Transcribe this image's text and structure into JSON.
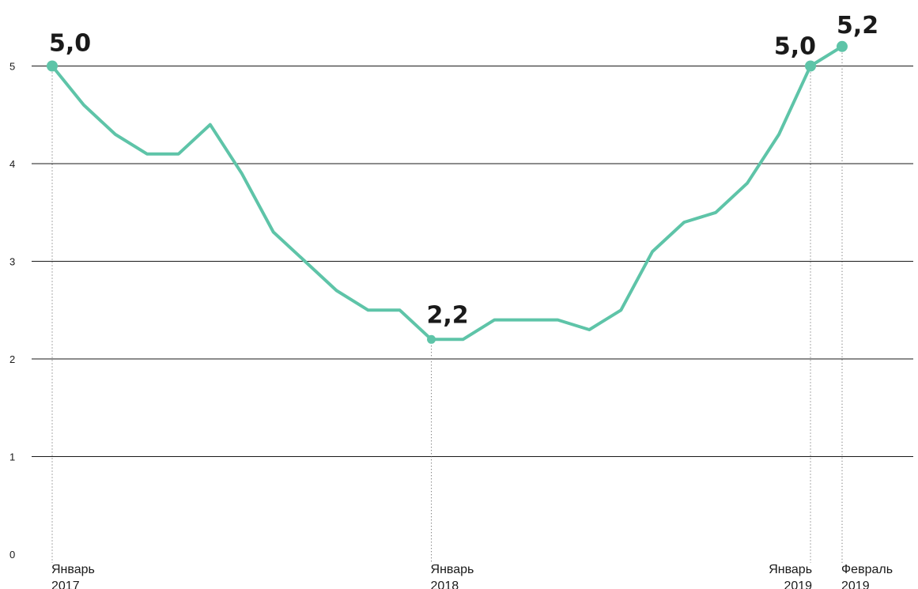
{
  "chart_data": {
    "type": "line",
    "title": "",
    "xlabel": "",
    "ylabel": "",
    "ylim": [
      0,
      5
    ],
    "y_ticks": [
      "0",
      "1",
      "2",
      "3",
      "4",
      "5"
    ],
    "grid": true,
    "color": "#5ec4a8",
    "x": [
      "2017-01",
      "2017-02",
      "2017-03",
      "2017-04",
      "2017-05",
      "2017-06",
      "2017-07",
      "2017-08",
      "2017-09",
      "2017-10",
      "2017-11",
      "2017-12",
      "2018-01",
      "2018-02",
      "2018-03",
      "2018-04",
      "2018-05",
      "2018-06",
      "2018-07",
      "2018-08",
      "2018-09",
      "2018-10",
      "2018-11",
      "2018-12",
      "2019-01",
      "2019-02"
    ],
    "series": [
      {
        "values": [
          5.0,
          4.6,
          4.3,
          4.1,
          4.1,
          4.4,
          3.9,
          3.3,
          3.0,
          2.7,
          2.5,
          2.5,
          2.2,
          2.2,
          2.4,
          2.4,
          2.4,
          2.3,
          2.5,
          3.1,
          3.4,
          3.5,
          3.8,
          4.3,
          5.0,
          5.2
        ]
      }
    ],
    "x_tick_labels": [
      {
        "month": "2017-01",
        "line1": "Январь",
        "line2": "2017"
      },
      {
        "month": "2018-01",
        "line1": "Январь",
        "line2": "2018"
      },
      {
        "month": "2019-01",
        "line1": "Январь",
        "line2": "2019"
      },
      {
        "month": "2019-02",
        "line1": "Февраль",
        "line2": "2019"
      }
    ],
    "annotations": [
      {
        "month": "2017-01",
        "text": "5,0"
      },
      {
        "month": "2018-01",
        "text": "2,2"
      },
      {
        "month": "2019-01",
        "text": "5,0"
      },
      {
        "month": "2019-02",
        "text": "5,2"
      }
    ]
  }
}
